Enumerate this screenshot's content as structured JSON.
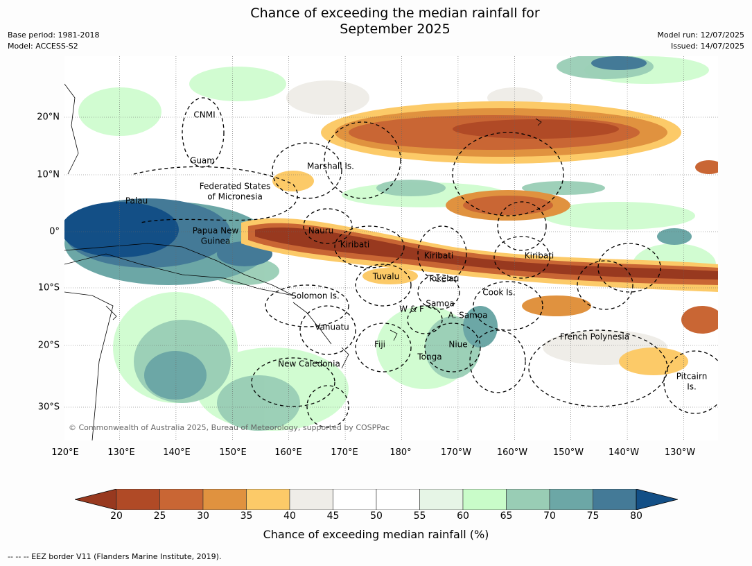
{
  "title": {
    "line1": "Chance of exceeding the median rainfall for",
    "line2": "September 2025"
  },
  "meta": {
    "base_period": "Base period: 1981-2018",
    "model": "Model: ACCESS-S2",
    "model_run": "Model run: 12/07/2025",
    "issued": "Issued: 14/07/2025"
  },
  "lon_labels": [
    "120°E",
    "130°E",
    "140°E",
    "150°E",
    "160°E",
    "170°E",
    "180°",
    "170°W",
    "160°W",
    "150°W",
    "140°W",
    "130°W"
  ],
  "lat_labels": [
    "20°N",
    "10°N",
    "0°",
    "10°S",
    "20°S",
    "30°S"
  ],
  "regions": [
    {
      "id": "cnmi",
      "text": "CNMI"
    },
    {
      "id": "guam",
      "text": "Guam"
    },
    {
      "id": "marshall",
      "text": "Marshall Is."
    },
    {
      "id": "fsm1",
      "text": "Federated States"
    },
    {
      "id": "fsm2",
      "text": "of Micronesia"
    },
    {
      "id": "palau",
      "text": "Palau"
    },
    {
      "id": "png1",
      "text": "Papua New"
    },
    {
      "id": "png2",
      "text": "Guinea"
    },
    {
      "id": "nauru",
      "text": "Nauru"
    },
    {
      "id": "kiribati1",
      "text": "Kiribati"
    },
    {
      "id": "kiribati2",
      "text": "Kiribati"
    },
    {
      "id": "kiribati3",
      "text": "Kiribati"
    },
    {
      "id": "tuvalu",
      "text": "Tuvalu"
    },
    {
      "id": "tokelau",
      "text": "Tokelau"
    },
    {
      "id": "solomon",
      "text": "Solomon Is."
    },
    {
      "id": "cook",
      "text": "Cook Is."
    },
    {
      "id": "wf",
      "text": "W & F"
    },
    {
      "id": "samoa",
      "text": "Samoa"
    },
    {
      "id": "asamoa",
      "text": "A. Samoa"
    },
    {
      "id": "vanuatu",
      "text": "Vanuatu"
    },
    {
      "id": "fiji",
      "text": "Fiji"
    },
    {
      "id": "niue",
      "text": "Niue"
    },
    {
      "id": "frpoly",
      "text": "French Polynesia"
    },
    {
      "id": "tonga",
      "text": "Tonga"
    },
    {
      "id": "newcal",
      "text": "New Caledonia"
    },
    {
      "id": "pitcairn1",
      "text": "Pitcairn"
    },
    {
      "id": "pitcairn2",
      "text": "Is."
    }
  ],
  "copyright": "© Commonwealth of Australia 2025, Bureau of Meteorology, supported by COSPPac",
  "colorbar": {
    "ticks": [
      "20",
      "25",
      "30",
      "35",
      "40",
      "45",
      "50",
      "55",
      "60",
      "65",
      "70",
      "75",
      "80"
    ],
    "colors": [
      "#98391f",
      "#b04a26",
      "#c96634",
      "#e0923f",
      "#fcca68",
      "#efede8",
      "#ffffff",
      "#ffffff",
      "#e6f5e6",
      "#c9fcc9",
      "#99cdb5",
      "#6ca7a6",
      "#447a97",
      "#134f86"
    ],
    "label": "Chance of exceeding median rainfall (%)"
  },
  "legend": "--  --  -- EEZ border V11 (Flanders Marine Institute, 2019)."
}
